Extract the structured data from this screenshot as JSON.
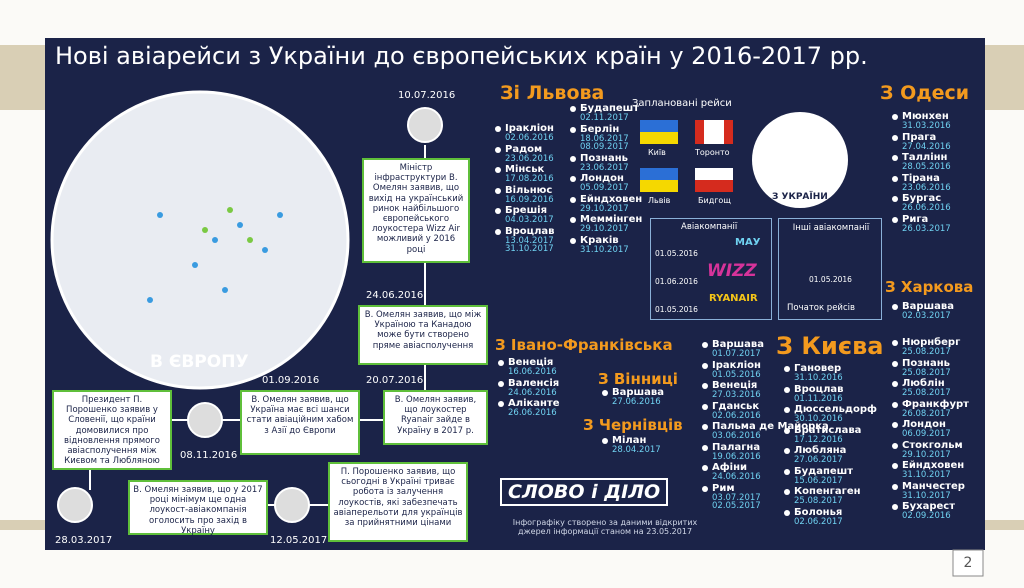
{
  "title": "Нові авіарейси з України до європейських країн у 2016-2017 рр.",
  "map_label": "В ЄВРОПУ",
  "ukraine_map_label": "З УКРАЇНИ",
  "planned_label": "Заплановані рейси",
  "flags": [
    "Київ",
    "Торонто",
    "Львів",
    "Бидгощ"
  ],
  "airlines": {
    "title": "Авіакомпанії",
    "dates": [
      "01.05.2016",
      "01.06.2016",
      "01.05.2016"
    ],
    "names": [
      "МАУ",
      "WIZZ",
      "RYANAIR"
    ]
  },
  "other_airlines": {
    "title": "Інші авіакомпанії",
    "date": "01.05.2016",
    "caption": "Початок рейсів"
  },
  "sections": {
    "lviv": {
      "title": "Зі Львова",
      "columns": [
        [
          {
            "city": "Іракліон",
            "dates": [
              "02.06.2016"
            ]
          },
          {
            "city": "Радом",
            "dates": [
              "23.06.2016"
            ]
          },
          {
            "city": "Мінськ",
            "dates": [
              "17.08.2016"
            ]
          },
          {
            "city": "Вільнюс",
            "dates": [
              "16.09.2016"
            ]
          },
          {
            "city": "Брешія",
            "dates": [
              "04.03.2017"
            ]
          },
          {
            "city": "Вроцлав",
            "dates": [
              "13.04.2017",
              "31.10.2017"
            ]
          }
        ],
        [
          {
            "city": "Будапешт",
            "dates": [
              "02.11.2017"
            ]
          },
          {
            "city": "Берлін",
            "dates": [
              "18.06.2017",
              "08.09.2017"
            ]
          },
          {
            "city": "Познань",
            "dates": [
              "23.06.2017"
            ]
          },
          {
            "city": "Лондон",
            "dates": [
              "05.09.2017"
            ]
          },
          {
            "city": "Ейндховен",
            "dates": [
              "29.10.2017"
            ]
          },
          {
            "city": "Меммінген",
            "dates": [
              "29.10.2017"
            ]
          },
          {
            "city": "Краків",
            "dates": [
              "31.10.2017"
            ]
          }
        ]
      ]
    },
    "odesa": {
      "title": "З Одеси",
      "columns": [
        [
          {
            "city": "Мюнхен",
            "dates": [
              "31.03.2016"
            ]
          },
          {
            "city": "Прага",
            "dates": [
              "27.04.2016"
            ]
          },
          {
            "city": "Таллінн",
            "dates": [
              "28.05.2016"
            ]
          },
          {
            "city": "Тірана",
            "dates": [
              "23.06.2016"
            ]
          },
          {
            "city": "Бургас",
            "dates": [
              "26.06.2016"
            ]
          },
          {
            "city": "Рига",
            "dates": [
              "26.03.2017"
            ]
          }
        ]
      ]
    },
    "kharkiv": {
      "title": "З Харкова",
      "columns": [
        [
          {
            "city": "Варшава",
            "dates": [
              "02.03.2017"
            ]
          }
        ]
      ]
    },
    "ivano": {
      "title": "З Івано-Франківська",
      "columns": [
        [
          {
            "city": "Венеція",
            "dates": [
              "16.06.2016"
            ]
          },
          {
            "city": "Валенсія",
            "dates": [
              "24.06.2016"
            ]
          },
          {
            "city": "Аліканте",
            "dates": [
              "26.06.2016"
            ]
          }
        ]
      ]
    },
    "vinnytsia": {
      "title": "З Вінниці",
      "columns": [
        [
          {
            "city": "Варшава",
            "dates": [
              "27.06.2016"
            ]
          }
        ]
      ]
    },
    "chernivtsi": {
      "title": "З Чернівців",
      "columns": [
        [
          {
            "city": "Мілан",
            "dates": [
              "28.04.2017"
            ]
          }
        ]
      ]
    },
    "kyiv": {
      "title": "З Києва",
      "columns": [
        [
          {
            "city": "Варшава",
            "dates": [
              "01.07.2017"
            ]
          },
          {
            "city": "Іракліон",
            "dates": [
              "01.05.2016"
            ]
          },
          {
            "city": "Венеція",
            "dates": [
              "27.03.2016"
            ]
          },
          {
            "city": "Гданськ",
            "dates": [
              "02.06.2016"
            ]
          },
          {
            "city": "Пальма де Майорка",
            "dates": [
              "03.06.2016"
            ]
          },
          {
            "city": "Палагна",
            "dates": [
              "19.06.2016"
            ]
          },
          {
            "city": "Афіни",
            "dates": [
              "24.06.2016"
            ]
          },
          {
            "city": "Рим",
            "dates": [
              "03.07.2017",
              "02.05.2017"
            ]
          }
        ],
        [
          {
            "city": "Гановер",
            "dates": [
              "31.10.2016"
            ]
          },
          {
            "city": "Вроцлав",
            "dates": [
              "01.11.2016"
            ]
          },
          {
            "city": "Дюссельдорф",
            "dates": [
              "30.10.2016"
            ]
          },
          {
            "city": "Братислава",
            "dates": [
              "17.12.2016"
            ]
          },
          {
            "city": "Любляна",
            "dates": [
              "27.06.2017"
            ]
          },
          {
            "city": "Будапешт",
            "dates": [
              "15.06.2017"
            ]
          },
          {
            "city": "Копенгаген",
            "dates": [
              "25.08.2017"
            ]
          },
          {
            "city": "Болонья",
            "dates": [
              "02.06.2017"
            ]
          }
        ],
        [
          {
            "city": "Нюрнберг",
            "dates": [
              "25.08.2017"
            ]
          },
          {
            "city": "Познань",
            "dates": [
              "25.08.2017"
            ]
          },
          {
            "city": "Люблін",
            "dates": [
              "25.08.2017"
            ]
          },
          {
            "city": "Франкфурт",
            "dates": [
              "26.08.2017"
            ]
          },
          {
            "city": "Лондон",
            "dates": [
              "06.09.2017"
            ]
          },
          {
            "city": "Стокгольм",
            "dates": [
              "29.10.2017"
            ]
          },
          {
            "city": "Ейндховен",
            "dates": [
              "31.10.2017"
            ]
          },
          {
            "city": "Манчестер",
            "dates": [
              "31.10.2017"
            ]
          },
          {
            "city": "Бухарест",
            "dates": [
              "02.09.2016"
            ]
          }
        ]
      ]
    }
  },
  "timeline": [
    {
      "date": "10.07.2016",
      "text": "Міністр інфраструктури В. Омелян заявив, що вихід на український ринок найбільшого європейського лоукостера Wizz Air можливий у 2016 році"
    },
    {
      "date": "24.06.2016",
      "text": "В. Омелян заявив, що між Україною та Канадою може бути створено пряме авіасполучення"
    },
    {
      "date": "20.07.2016",
      "text": "В. Омелян заявив, що лоукостер Ryanair зайде в Україну в 2017 р."
    },
    {
      "date": "01.09.2016",
      "text": "В. Омелян заявив, що Україна має всі шанси стати авіаційним хабом з Азії до Європи"
    },
    {
      "date": "08.11.2016",
      "text": "Президент П. Порошенко заявив у Словенії, що країни домовилися про відновлення прямого авіасполучення між Києвом та Любляною"
    },
    {
      "date": "28.03.2017",
      "text": "В. Омелян заявив, що у 2017 році мінімум ще одна лоукост-авіакомпанія оголосить про захід в Україну"
    },
    {
      "date": "12.05.2017",
      "text": "П. Порошенко заявив, що сьогодні в Україні триває робота із залучення лоукостів, які забезпечать авіаперельоти для українців за прийнятними цінами"
    }
  ],
  "logo": "СЛОВО і ДІЛО",
  "footnote": "Інфографіку створено за даними відкритих джерел інформації станом на 23.05.2017",
  "page_number": "2"
}
